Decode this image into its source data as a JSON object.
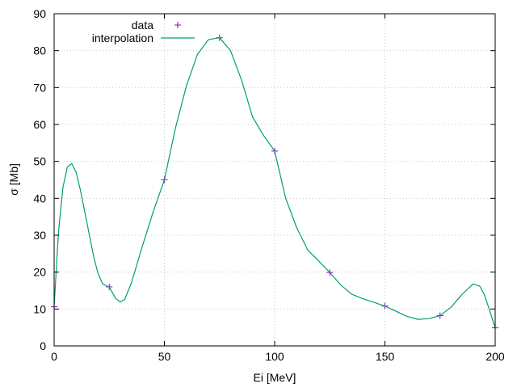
{
  "chart_data": {
    "type": "line",
    "title": "",
    "xlabel": "Ei [MeV]",
    "ylabel": "σ [Mb]",
    "xlim": [
      0,
      200
    ],
    "ylim": [
      0,
      90
    ],
    "xticks": [
      0,
      50,
      100,
      150,
      200
    ],
    "yticks": [
      0,
      10,
      20,
      30,
      40,
      50,
      60,
      70,
      80,
      90
    ],
    "grid": true,
    "legend_position": "top-left",
    "series": [
      {
        "name": "data",
        "style": "points",
        "marker": "plus",
        "color": "#9400d3",
        "x": [
          0,
          25,
          50,
          75,
          100,
          125,
          150,
          175,
          200
        ],
        "y": [
          10.6,
          16,
          45,
          83.5,
          52.8,
          19.9,
          10.8,
          8.2,
          4.9
        ]
      },
      {
        "name": "interpolation",
        "style": "line",
        "color": "#009e73",
        "x": [
          0,
          1,
          2,
          4,
          6,
          8,
          10,
          12,
          15,
          18,
          20,
          22,
          25,
          28,
          30,
          32,
          35,
          40,
          45,
          50,
          55,
          60,
          65,
          70,
          75,
          80,
          85,
          90,
          95,
          100,
          105,
          110,
          115,
          120,
          125,
          130,
          135,
          140,
          145,
          150,
          155,
          160,
          165,
          170,
          175,
          180,
          185,
          190,
          193,
          195,
          197,
          200
        ],
        "y": [
          10.6,
          21,
          31,
          43,
          48.5,
          49.4,
          47,
          42,
          33,
          24,
          19.5,
          16.8,
          15.9,
          12.8,
          11.9,
          12.6,
          17,
          27,
          36.5,
          45,
          59,
          70.5,
          79,
          83,
          83.5,
          80,
          72,
          62,
          57,
          52.8,
          40,
          32,
          26,
          23,
          19.9,
          16.5,
          14,
          12.8,
          11.8,
          10.8,
          9.4,
          8,
          7.2,
          7.4,
          8.2,
          10.5,
          14,
          16.8,
          16.2,
          14,
          10.5,
          4.9
        ]
      }
    ]
  }
}
